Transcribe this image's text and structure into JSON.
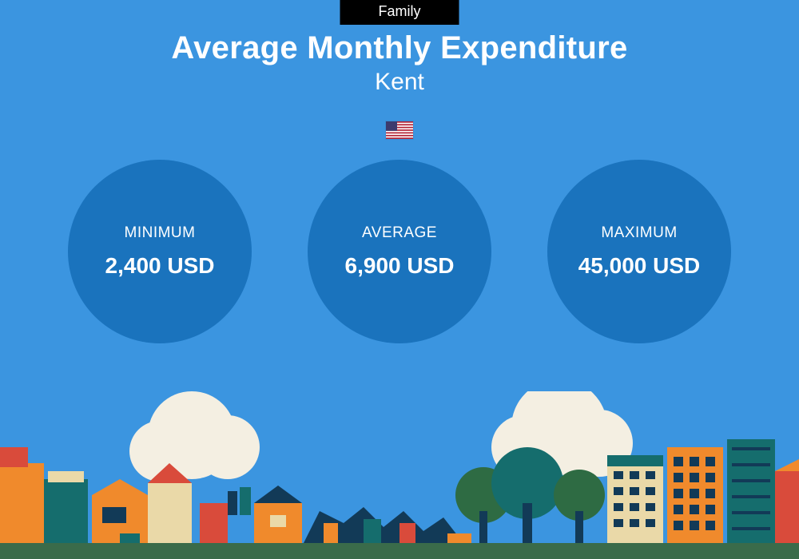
{
  "badge": {
    "text": "Family",
    "bg": "#000000",
    "color": "#ffffff"
  },
  "title": "Average Monthly Expenditure",
  "subtitle": "Kent",
  "flag": {
    "country": "us"
  },
  "background_color": "#3b95e0",
  "circle_bg": "#1a73bd",
  "stats": [
    {
      "label": "MINIMUM",
      "value": "2,400 USD"
    },
    {
      "label": "AVERAGE",
      "value": "6,900 USD"
    },
    {
      "label": "MAXIMUM",
      "value": "45,000 USD"
    }
  ],
  "city_palette": {
    "grass": "#3a6b4a",
    "cloud": "#f4efe2",
    "orange": "#f08a2c",
    "red": "#d94b3b",
    "teal": "#156d6d",
    "navy": "#123a57",
    "cream": "#ead9a8",
    "green": "#2e6b43"
  }
}
